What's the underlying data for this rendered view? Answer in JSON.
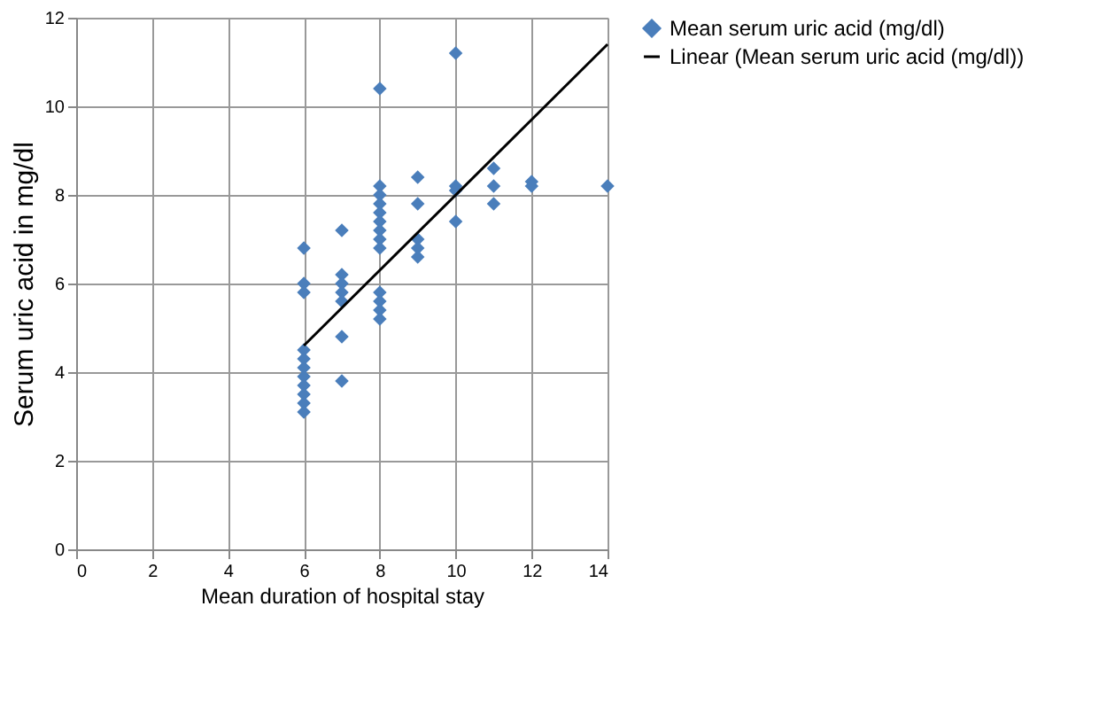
{
  "chart_data": {
    "type": "scatter",
    "xlabel": "Mean duration of hospital stay",
    "ylabel": "Serum uric acid in mg/dl",
    "xlim": [
      0,
      14
    ],
    "xticks": [
      0,
      2,
      4,
      6,
      8,
      10,
      12,
      14
    ],
    "ylim": [
      0,
      12
    ],
    "yticks": [
      0,
      2,
      4,
      6,
      8,
      10,
      12
    ],
    "grid": true,
    "legend": "right",
    "series": [
      {
        "name": "Mean serum uric acid (mg/dl)",
        "color": "#4a7ebb",
        "marker": "diamond",
        "x": [
          6,
          6,
          6,
          6,
          6,
          6,
          6,
          6,
          6,
          6,
          6,
          7,
          7,
          7,
          7,
          7,
          7,
          7,
          8,
          8,
          8,
          8,
          8,
          8,
          8,
          8,
          8,
          8,
          8,
          8,
          8,
          9,
          9,
          9,
          9,
          9,
          10,
          10,
          10,
          10,
          11,
          11,
          11,
          12,
          12,
          14
        ],
        "values": [
          6.8,
          6.0,
          5.8,
          4.5,
          4.3,
          4.1,
          3.9,
          3.7,
          3.5,
          3.3,
          3.1,
          7.2,
          6.2,
          6.0,
          5.8,
          5.6,
          4.8,
          3.8,
          10.4,
          8.2,
          8.0,
          7.8,
          7.6,
          7.4,
          7.2,
          7.0,
          6.8,
          5.8,
          5.6,
          5.4,
          5.2,
          8.4,
          7.8,
          7.0,
          6.8,
          6.6,
          11.2,
          8.2,
          8.1,
          7.4,
          8.6,
          8.2,
          7.8,
          8.3,
          8.2,
          8.2
        ]
      },
      {
        "name": "Linear (Mean serum uric acid (mg/dl))",
        "color": "#000000",
        "type": "line",
        "marker": "none",
        "line_style": "solid",
        "x": [
          6,
          14
        ],
        "values": [
          4.6,
          11.4
        ]
      }
    ]
  }
}
